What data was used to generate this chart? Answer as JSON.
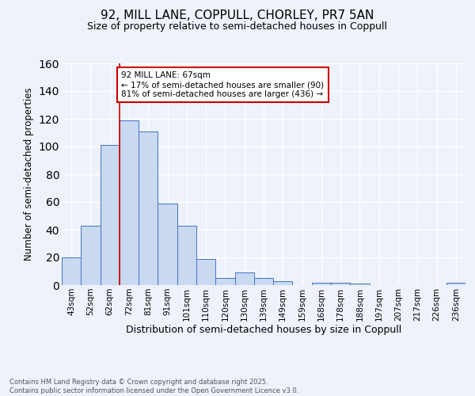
{
  "title_line1": "92, MILL LANE, COPPULL, CHORLEY, PR7 5AN",
  "title_line2": "Size of property relative to semi-detached houses in Coppull",
  "xlabel": "Distribution of semi-detached houses by size in Coppull",
  "ylabel": "Number of semi-detached properties",
  "footnote_line1": "Contains HM Land Registry data © Crown copyright and database right 2025.",
  "footnote_line2": "Contains public sector information licensed under the Open Government Licence v3.0.",
  "bin_labels": [
    "43sqm",
    "52sqm",
    "62sqm",
    "72sqm",
    "81sqm",
    "91sqm",
    "101sqm",
    "110sqm",
    "120sqm",
    "130sqm",
    "139sqm",
    "149sqm",
    "159sqm",
    "168sqm",
    "178sqm",
    "188sqm",
    "197sqm",
    "207sqm",
    "217sqm",
    "226sqm",
    "236sqm"
  ],
  "bar_values": [
    20,
    43,
    101,
    119,
    111,
    59,
    43,
    19,
    5,
    9,
    5,
    3,
    0,
    2,
    2,
    1,
    0,
    0,
    0,
    0,
    2
  ],
  "bar_color": "#c9d9f0",
  "bar_edge_color": "#4472c4",
  "property_sqm": 67,
  "pct_smaller": 17,
  "n_smaller": 90,
  "pct_larger": 81,
  "n_larger": 436,
  "annotation_label": "92 MILL LANE: 67sqm",
  "annotation_smaller": "← 17% of semi-detached houses are smaller (90)",
  "annotation_larger": "81% of semi-detached houses are larger (436) →",
  "ylim": [
    0,
    160
  ],
  "yticks": [
    0,
    20,
    40,
    60,
    80,
    100,
    120,
    140,
    160
  ],
  "background_color": "#eef2fa",
  "grid_color": "#ffffff",
  "annotation_box_color": "#ffffff",
  "annotation_box_edge_color": "#cc0000",
  "red_line_color": "#cc0000"
}
